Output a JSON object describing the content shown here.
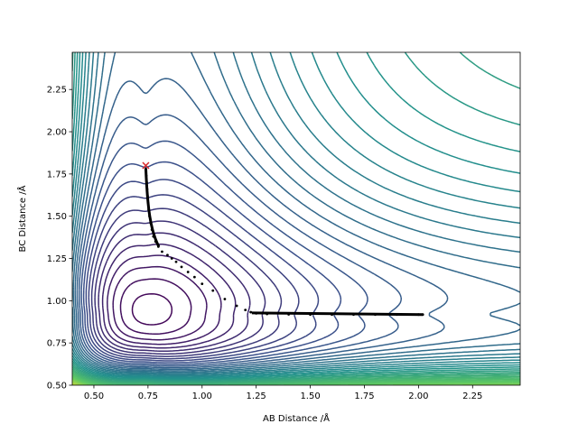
{
  "chart_data": {
    "type": "contour",
    "title": "",
    "xlabel": "AB Distance /Å",
    "ylabel": "BC Distance /Å",
    "xlim": [
      0.4,
      2.47
    ],
    "ylim": [
      0.5,
      2.47
    ],
    "x_ticks": [
      "0.50",
      "0.75",
      "1.00",
      "1.25",
      "1.50",
      "1.75",
      "2.00",
      "2.25"
    ],
    "y_ticks": [
      "0.50",
      "0.75",
      "1.00",
      "1.25",
      "1.50",
      "1.75",
      "2.00",
      "2.25"
    ],
    "x_tick_values": [
      0.5,
      0.75,
      1.0,
      1.25,
      1.5,
      1.75,
      2.0,
      2.25
    ],
    "y_tick_values": [
      0.5,
      0.75,
      1.0,
      1.25,
      1.5,
      1.75,
      2.0,
      2.25
    ],
    "colormap": "viridis",
    "contour_levels": 46,
    "start_marker": {
      "x": 0.74,
      "y": 1.8,
      "symbol": "x",
      "color": "#d62728"
    },
    "trajectory": [
      [
        0.74,
        1.78
      ],
      [
        0.742,
        1.74
      ],
      [
        0.744,
        1.7
      ],
      [
        0.746,
        1.66
      ],
      [
        0.748,
        1.62
      ],
      [
        0.75,
        1.58
      ],
      [
        0.753,
        1.54
      ],
      [
        0.757,
        1.5
      ],
      [
        0.762,
        1.46
      ],
      [
        0.768,
        1.42
      ],
      [
        0.775,
        1.38
      ],
      [
        0.785,
        1.35
      ],
      [
        0.798,
        1.32
      ],
      [
        0.815,
        1.29
      ],
      [
        0.84,
        1.27
      ],
      [
        0.86,
        1.25
      ],
      [
        0.88,
        1.23
      ],
      [
        0.905,
        1.2
      ],
      [
        0.935,
        1.17
      ],
      [
        0.965,
        1.14
      ],
      [
        1.0,
        1.1
      ],
      [
        1.05,
        1.06
      ],
      [
        1.105,
        1.01
      ],
      [
        1.16,
        0.97
      ],
      [
        1.2,
        0.945
      ],
      [
        1.225,
        0.932
      ],
      [
        1.25,
        0.925
      ],
      [
        1.3,
        0.921
      ],
      [
        1.4,
        0.919
      ],
      [
        1.5,
        0.918
      ],
      [
        1.6,
        0.918
      ],
      [
        1.7,
        0.918
      ],
      [
        1.8,
        0.918
      ],
      [
        1.9,
        0.918
      ],
      [
        2.0,
        0.918
      ],
      [
        2.02,
        0.918
      ]
    ],
    "trajectory_color": "#000000"
  }
}
